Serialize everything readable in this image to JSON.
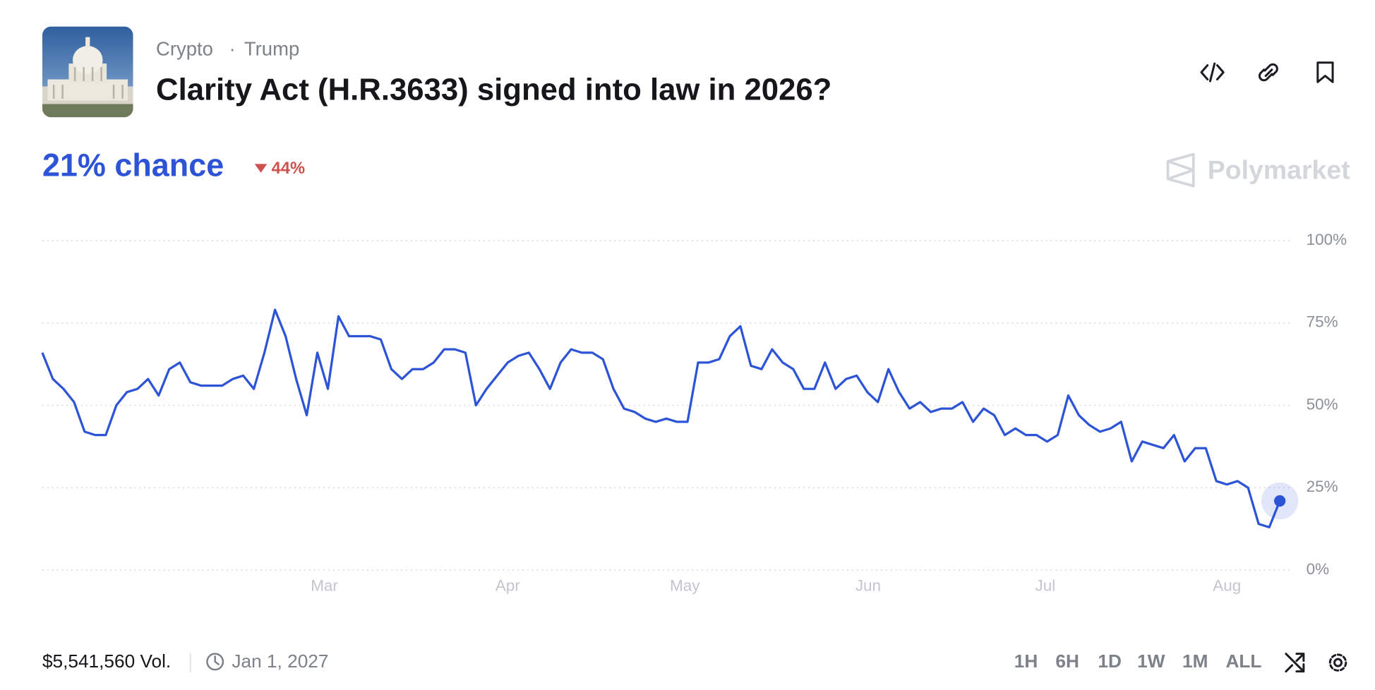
{
  "header": {
    "tags": [
      "Crypto",
      "Trump"
    ],
    "title": "Clarity Act (H.R.3633) signed into law in 2026?",
    "chance": "21% chance",
    "change": "44%",
    "brand": "Polymarket"
  },
  "chart_data": {
    "type": "line",
    "color": "#2d54d6",
    "values": [
      66,
      58,
      55,
      51,
      42,
      41,
      41,
      50,
      54,
      55,
      58,
      53,
      61,
      63,
      57,
      56,
      56,
      56,
      58,
      59,
      55,
      66,
      79,
      71,
      58,
      47,
      66,
      55,
      77,
      71,
      71,
      71,
      70,
      61,
      58,
      61,
      61,
      63,
      67,
      67,
      66,
      50,
      55,
      59,
      63,
      65,
      66,
      61,
      55,
      63,
      67,
      66,
      66,
      64,
      55,
      49,
      48,
      46,
      45,
      46,
      45,
      45,
      63,
      63,
      64,
      71,
      74,
      62,
      61,
      67,
      63,
      61,
      55,
      55,
      63,
      55,
      58,
      59,
      54,
      51,
      61,
      54,
      49,
      51,
      48,
      49,
      49,
      51,
      45,
      49,
      47,
      41,
      43,
      41,
      41,
      39,
      41,
      53,
      47,
      44,
      42,
      43,
      45,
      33,
      39,
      38,
      37,
      41,
      33,
      37,
      37,
      27,
      26,
      27,
      25,
      14,
      13,
      21
    ],
    "xlim": [
      0,
      117
    ],
    "xticks": [
      {
        "value": 26.67,
        "label": "Mar"
      },
      {
        "value": 44,
        "label": "Apr"
      },
      {
        "value": 60.75,
        "label": "May"
      },
      {
        "value": 78.08,
        "label": "Jun"
      },
      {
        "value": 94.83,
        "label": "Jul"
      },
      {
        "value": 112,
        "label": "Aug"
      }
    ],
    "ylim": [
      0,
      100
    ],
    "yticks": [
      {
        "value": 0,
        "label": "0%"
      },
      {
        "value": 25,
        "label": "25%"
      },
      {
        "value": 50,
        "label": "50%"
      },
      {
        "value": 75,
        "label": "75%"
      },
      {
        "value": 100,
        "label": "100%"
      }
    ],
    "grid": true
  },
  "footer": {
    "volume": "$5,541,560 Vol.",
    "end_date": "Jan 1, 2027",
    "ranges": [
      "1H",
      "6H",
      "1D",
      "1W",
      "1M",
      "ALL"
    ]
  }
}
